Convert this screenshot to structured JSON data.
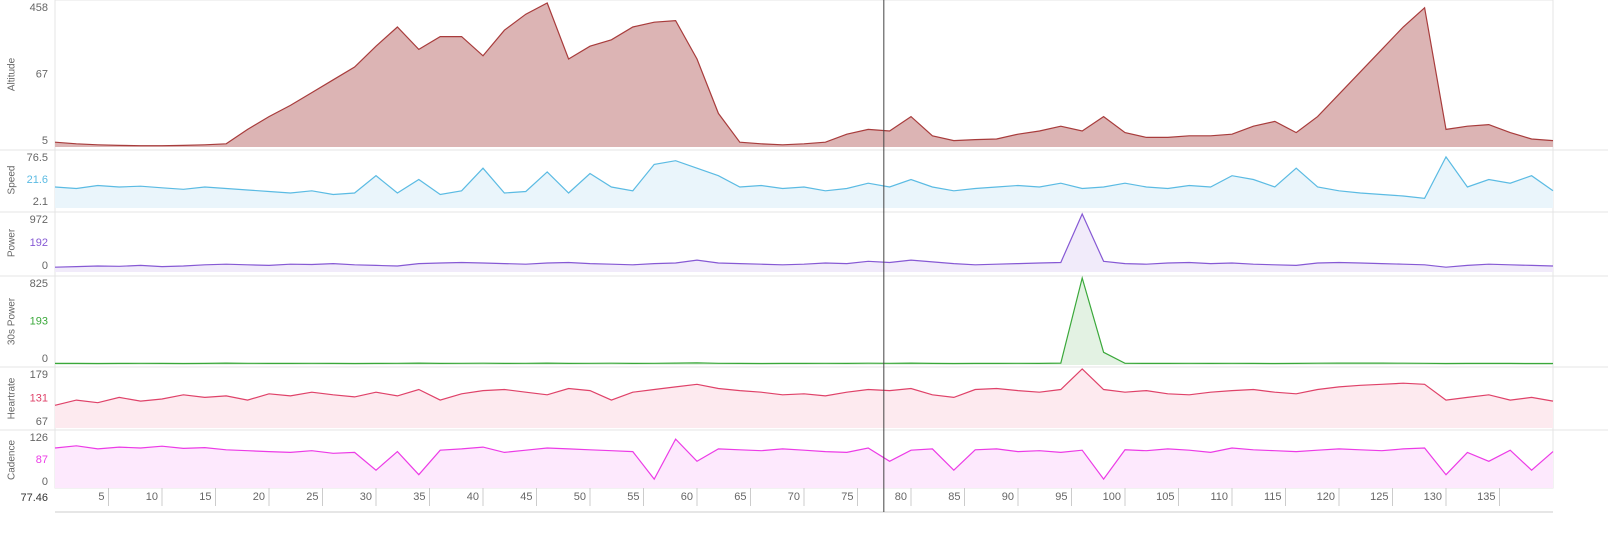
{
  "chart_data": {
    "type": "line",
    "x": [
      0,
      2,
      4,
      6,
      8,
      10,
      12,
      14,
      16,
      18,
      20,
      22,
      24,
      26,
      28,
      30,
      32,
      34,
      36,
      38,
      40,
      42,
      44,
      46,
      48,
      50,
      52,
      54,
      56,
      58,
      60,
      62,
      64,
      66,
      68,
      70,
      72,
      74,
      76,
      78,
      80,
      82,
      84,
      86,
      88,
      90,
      92,
      94,
      96,
      98,
      100,
      102,
      104,
      106,
      108,
      110,
      112,
      114,
      116,
      118,
      120,
      122,
      124,
      126,
      128,
      130,
      132,
      134,
      136,
      138,
      140
    ],
    "xlim": [
      0,
      140
    ],
    "xticks": [
      5,
      10,
      15,
      20,
      25,
      30,
      35,
      40,
      45,
      50,
      55,
      60,
      65,
      70,
      75,
      80,
      85,
      90,
      95,
      100,
      105,
      110,
      115,
      120,
      125,
      130,
      135
    ],
    "cursor_x": 77.46,
    "series": [
      {
        "name": "Altitude",
        "color": "#a83c3c",
        "fill": "#dcb4b4",
        "ylim": [
          5,
          458
        ],
        "yticks": [
          5,
          67,
          458
        ],
        "values": [
          20,
          15,
          12,
          10,
          9,
          9,
          10,
          12,
          15,
          60,
          100,
          135,
          175,
          215,
          255,
          320,
          380,
          310,
          350,
          350,
          290,
          370,
          420,
          455,
          280,
          320,
          340,
          380,
          395,
          400,
          280,
          110,
          20,
          15,
          12,
          15,
          20,
          45,
          60,
          55,
          100,
          40,
          25,
          28,
          30,
          45,
          55,
          70,
          55,
          100,
          50,
          35,
          35,
          40,
          40,
          45,
          70,
          85,
          50,
          100,
          170,
          240,
          310,
          380,
          440,
          60,
          70,
          75,
          50,
          30,
          25
        ]
      },
      {
        "name": "Speed",
        "color": "#5bbbe3",
        "fill": "#eaf5fb",
        "ylim": [
          2.1,
          76.5
        ],
        "yticks": [
          2.1,
          21.6,
          76.5
        ],
        "values": [
          30,
          28,
          32,
          30,
          31,
          29,
          27,
          30,
          28,
          26,
          24,
          22,
          25,
          20,
          22,
          45,
          22,
          40,
          20,
          25,
          55,
          22,
          24,
          50,
          22,
          48,
          30,
          25,
          60,
          65,
          55,
          45,
          30,
          32,
          28,
          30,
          25,
          28,
          35,
          30,
          40,
          30,
          25,
          28,
          30,
          32,
          30,
          35,
          28,
          30,
          35,
          30,
          28,
          32,
          30,
          45,
          40,
          30,
          55,
          30,
          25,
          22,
          20,
          18,
          15,
          70,
          30,
          40,
          35,
          45,
          25
        ]
      },
      {
        "name": "Power",
        "color": "#8659d4",
        "fill": "#f1ebfa",
        "ylim": [
          0,
          972
        ],
        "yticks": [
          0,
          192,
          972
        ],
        "values": [
          80,
          90,
          100,
          95,
          110,
          90,
          100,
          120,
          130,
          120,
          110,
          130,
          125,
          140,
          120,
          110,
          100,
          140,
          150,
          160,
          150,
          140,
          130,
          150,
          160,
          140,
          130,
          120,
          140,
          150,
          200,
          150,
          140,
          130,
          120,
          130,
          150,
          140,
          180,
          160,
          200,
          170,
          140,
          120,
          130,
          140,
          150,
          160,
          972,
          180,
          140,
          130,
          150,
          160,
          140,
          150,
          130,
          120,
          110,
          150,
          160,
          150,
          140,
          130,
          120,
          80,
          110,
          130,
          120,
          110,
          100
        ]
      },
      {
        "name": "30s Power",
        "color": "#3aa83a",
        "fill": "#e3f2e3",
        "ylim": [
          0,
          825
        ],
        "yticks": [
          0,
          193,
          825
        ],
        "values": [
          15,
          15,
          14,
          15,
          16,
          15,
          14,
          15,
          18,
          16,
          15,
          15,
          16,
          15,
          14,
          15,
          16,
          18,
          15,
          16,
          17,
          15,
          16,
          18,
          15,
          16,
          17,
          15,
          16,
          18,
          20,
          16,
          15,
          14,
          15,
          15,
          16,
          15,
          17,
          16,
          18,
          15,
          14,
          15,
          15,
          16,
          15,
          18,
          825,
          120,
          16,
          15,
          15,
          16,
          15,
          16,
          15,
          14,
          15,
          17,
          18,
          18,
          18,
          17,
          16,
          14,
          15,
          15,
          15,
          14,
          14
        ]
      },
      {
        "name": "Heartrate",
        "color": "#df4269",
        "fill": "#fdeaef",
        "ylim": [
          67,
          179
        ],
        "yticks": [
          67,
          131,
          179
        ],
        "values": [
          110,
          120,
          115,
          125,
          118,
          122,
          130,
          125,
          128,
          120,
          132,
          128,
          135,
          130,
          126,
          135,
          128,
          140,
          120,
          132,
          138,
          140,
          135,
          130,
          142,
          138,
          120,
          135,
          140,
          145,
          150,
          142,
          138,
          135,
          130,
          132,
          128,
          135,
          140,
          138,
          142,
          130,
          125,
          140,
          142,
          138,
          135,
          140,
          179,
          140,
          135,
          138,
          132,
          130,
          135,
          138,
          140,
          135,
          132,
          140,
          145,
          148,
          150,
          152,
          150,
          120,
          125,
          130,
          120,
          125,
          118
        ]
      },
      {
        "name": "Cadence",
        "color": "#ec3be6",
        "fill": "#fde9fd",
        "ylim": [
          0,
          126
        ],
        "yticks": [
          0,
          87,
          126
        ],
        "values": [
          90,
          95,
          88,
          92,
          90,
          94,
          89,
          91,
          86,
          84,
          82,
          80,
          84,
          78,
          80,
          40,
          82,
          30,
          85,
          88,
          92,
          80,
          85,
          90,
          88,
          86,
          84,
          82,
          20,
          110,
          60,
          88,
          86,
          84,
          88,
          85,
          82,
          80,
          90,
          60,
          85,
          88,
          40,
          86,
          88,
          82,
          84,
          80,
          85,
          20,
          86,
          84,
          88,
          85,
          80,
          90,
          86,
          84,
          82,
          85,
          88,
          86,
          84,
          88,
          90,
          30,
          80,
          60,
          85,
          40,
          82
        ]
      }
    ]
  }
}
